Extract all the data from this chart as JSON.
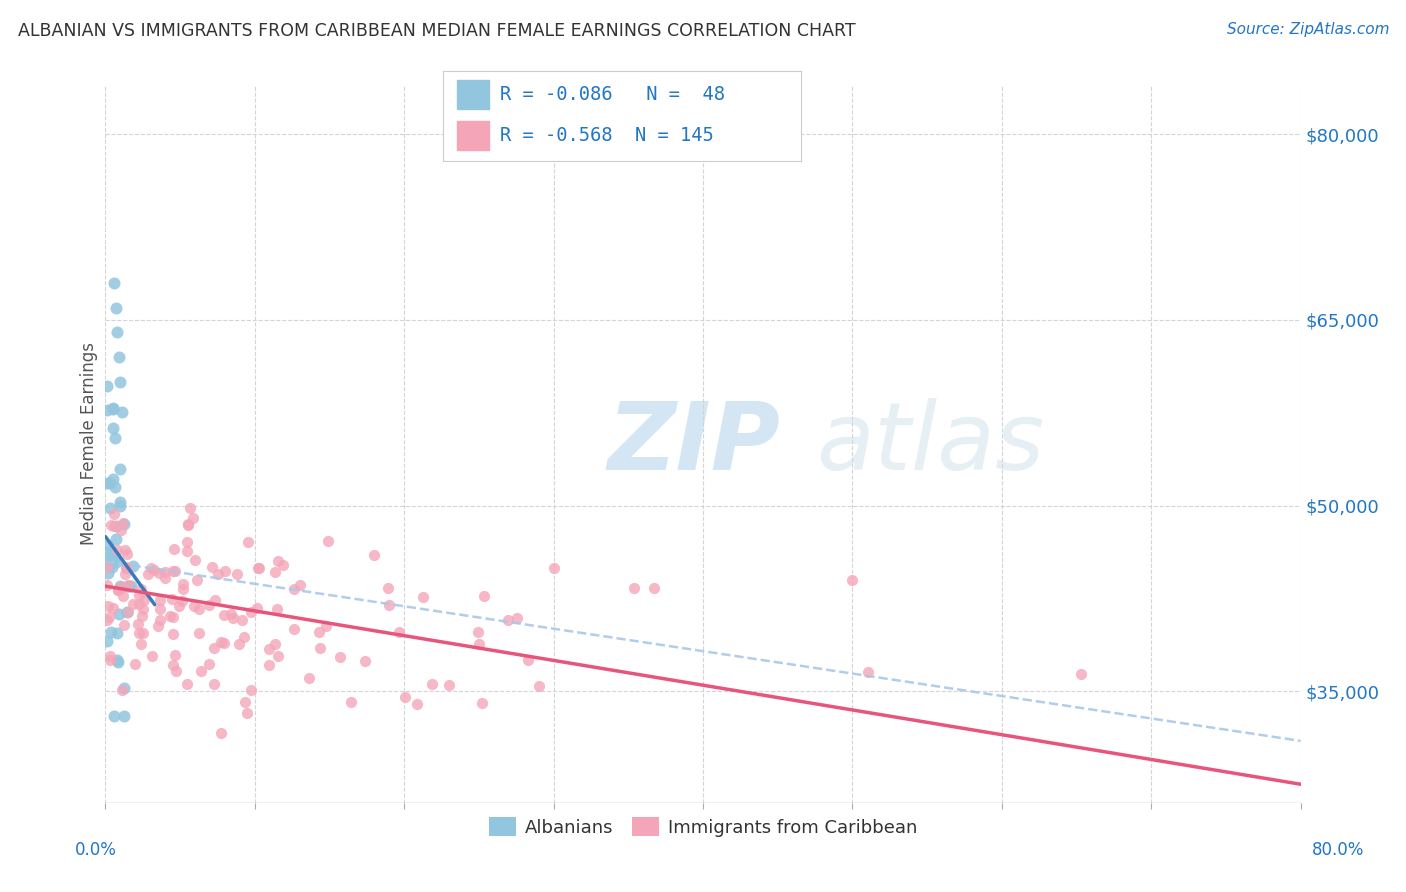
{
  "title": "ALBANIAN VS IMMIGRANTS FROM CARIBBEAN MEDIAN FEMALE EARNINGS CORRELATION CHART",
  "source": "Source: ZipAtlas.com",
  "ylabel": "Median Female Earnings",
  "legend_label1": "Albanians",
  "legend_label2": "Immigrants from Caribbean",
  "r1": -0.086,
  "n1": 48,
  "r2": -0.568,
  "n2": 145,
  "color_blue": "#92c5de",
  "color_pink": "#f4a6b8",
  "color_blue_line": "#3a7bbf",
  "color_pink_line": "#e8557a",
  "color_dash": "#a8c8e8",
  "color_text_blue": "#2176c7",
  "color_title": "#333333",
  "bg_color": "#ffffff",
  "grid_color": "#d0d0d0",
  "xlim": [
    0.0,
    0.8
  ],
  "ylim": [
    26000,
    84000
  ],
  "ytick_vals": [
    35000,
    50000,
    65000,
    80000
  ],
  "ytick_labels": [
    "$35,000",
    "$50,000",
    "$65,000",
    "$80,000"
  ],
  "alb_line_x0": 0.0,
  "alb_line_x1": 0.033,
  "alb_line_y0": 47500,
  "alb_line_y1": 42000,
  "car_line_x0": 0.0,
  "car_line_x1": 0.8,
  "car_line_y0": 43500,
  "car_line_y1": 27500,
  "dash_line_x0": 0.0,
  "dash_line_x1": 0.8,
  "dash_line_y0": 45500,
  "dash_line_y1": 31000
}
